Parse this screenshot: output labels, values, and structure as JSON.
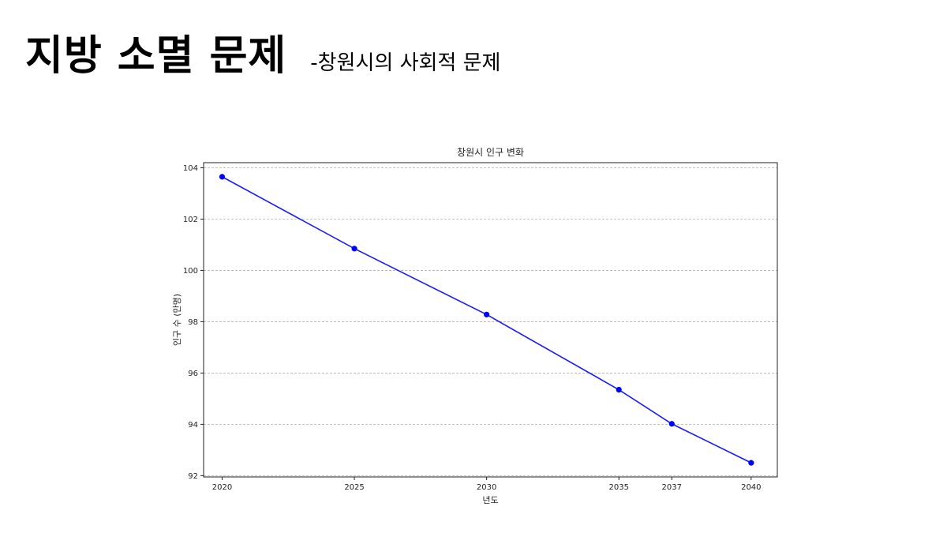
{
  "slide": {
    "title": "지방 소멸 문제",
    "subtitle": "-창원시의 사회적 문제"
  },
  "chart_data": {
    "type": "line",
    "title": "창원시 인구 변화",
    "xlabel": "년도",
    "ylabel": "인구 수 (만명)",
    "x": [
      2020,
      2025,
      2030,
      2035,
      2037,
      2040
    ],
    "series": [
      {
        "values": [
          103.65,
          100.85,
          98.28,
          95.35,
          94.02,
          92.5
        ],
        "color": "#0000ff"
      }
    ],
    "xticks": [
      2020,
      2025,
      2030,
      2035,
      2037,
      2040
    ],
    "yticks": [
      92,
      94,
      96,
      98,
      100,
      102,
      104
    ],
    "xlim": [
      2019.3,
      2040.99
    ],
    "ylim": [
      91.95,
      104.2
    ],
    "grid": "y-dashed",
    "line_color": "#1a1aff",
    "marker_color": "#0000ff"
  }
}
